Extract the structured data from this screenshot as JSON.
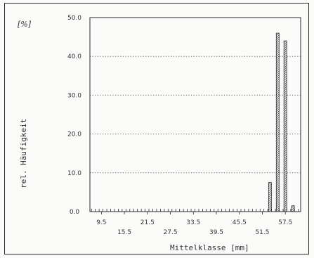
{
  "chart_data": {
    "type": "bar",
    "unit_label": "[%]",
    "ylabel": "rel. Häufigkeit",
    "xlabel": "Mittelklasse [mm]",
    "ylim": [
      0,
      50
    ],
    "yticks": [
      "0.0",
      "10.0",
      "20.0",
      "30.0",
      "40.0",
      "50.0"
    ],
    "xlim": [
      6.5,
      61.5
    ],
    "xticks": [
      "9.5",
      "15.5",
      "21.5",
      "27.5",
      "33.5",
      "39.5",
      "45.5",
      "51.5",
      "57.5"
    ],
    "grid": "horizontal dotted",
    "x": [
      53.5,
      55.5,
      57.5,
      59.5
    ],
    "values": [
      7.5,
      46.0,
      44.0,
      1.5
    ]
  },
  "colors": {
    "ink": "#2a2a2a",
    "grid": "#666666",
    "bar_fill": "#e8e8e8"
  }
}
